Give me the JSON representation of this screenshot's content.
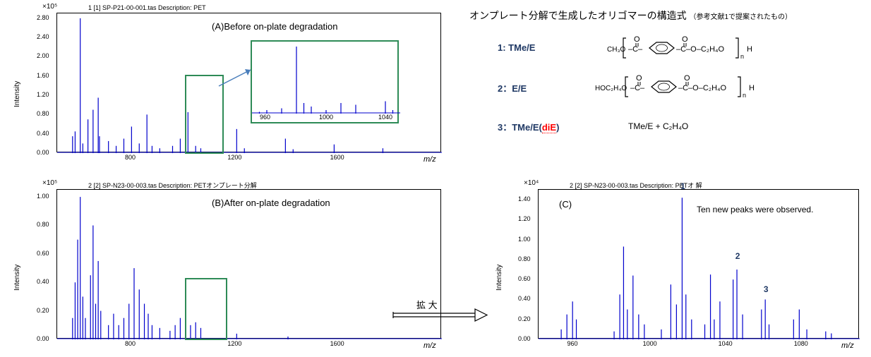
{
  "colors": {
    "spectrum": "#0000cd",
    "green_box": "#2e8b57",
    "arrow": "#4a7ebb",
    "struct_label": "#1f3864",
    "dotted_red": "#ff0000",
    "bg": "#ffffff"
  },
  "chartA": {
    "file_label": "1 [1] SP-P21-00-001.tas    Description: PET",
    "overlay": "(A)Before on-plate degradation",
    "y_exponent": "×10⁵",
    "y_axis": "Intensity",
    "x_axis": "m/z",
    "y_ticks": [
      "0.00",
      "0.40",
      "0.80",
      "1.20",
      "1.60",
      "2.00",
      "2.40",
      "2.80"
    ],
    "x_ticks": [
      "800",
      "1200",
      "1600"
    ],
    "xlim": [
      500,
      2000
    ],
    "ylim": [
      0,
      2.9
    ],
    "inset_xticks": [
      "960",
      "1000",
      "1040"
    ],
    "peaks": [
      [
        560,
        0.35
      ],
      [
        570,
        0.45
      ],
      [
        590,
        2.8
      ],
      [
        600,
        0.2
      ],
      [
        620,
        0.7
      ],
      [
        640,
        0.9
      ],
      [
        660,
        1.15
      ],
      [
        665,
        0.35
      ],
      [
        700,
        0.25
      ],
      [
        730,
        0.15
      ],
      [
        760,
        0.3
      ],
      [
        790,
        0.55
      ],
      [
        820,
        0.2
      ],
      [
        850,
        0.8
      ],
      [
        870,
        0.15
      ],
      [
        900,
        0.1
      ],
      [
        950,
        0.15
      ],
      [
        980,
        0.3
      ],
      [
        1010,
        0.85
      ],
      [
        1040,
        0.15
      ],
      [
        1060,
        0.1
      ],
      [
        1200,
        0.5
      ],
      [
        1230,
        0.1
      ],
      [
        1390,
        0.3
      ],
      [
        1420,
        0.08
      ],
      [
        1580,
        0.18
      ],
      [
        1770,
        0.1
      ]
    ],
    "inset_peaks": [
      [
        955,
        0.05
      ],
      [
        960,
        0.1
      ],
      [
        970,
        0.15
      ],
      [
        980,
        1.9
      ],
      [
        985,
        0.3
      ],
      [
        990,
        0.2
      ],
      [
        1000,
        0.1
      ],
      [
        1010,
        0.3
      ],
      [
        1020,
        0.25
      ],
      [
        1040,
        0.35
      ],
      [
        1045,
        0.1
      ]
    ],
    "inset_ylim": [
      0,
      2.0
    ],
    "inset_xlim": [
      950,
      1050
    ]
  },
  "chartB": {
    "file_label": "2 [2] SP-N23-00-003.tas    Description: PETオンプレート分解",
    "overlay": "(B)After on-plate degradation",
    "y_exponent": "×10⁵",
    "y_axis": "Intensity",
    "x_axis": "m/z",
    "y_ticks": [
      "0.00",
      "0.20",
      "0.40",
      "0.60",
      "0.80",
      "1.00"
    ],
    "x_ticks": [
      "800",
      "1200",
      "1600"
    ],
    "xlim": [
      500,
      2000
    ],
    "ylim": [
      0,
      1.05
    ],
    "expand_label": "拡 大",
    "peaks": [
      [
        560,
        0.15
      ],
      [
        570,
        0.4
      ],
      [
        580,
        0.7
      ],
      [
        590,
        1.0
      ],
      [
        600,
        0.3
      ],
      [
        610,
        0.15
      ],
      [
        630,
        0.45
      ],
      [
        640,
        0.8
      ],
      [
        650,
        0.25
      ],
      [
        660,
        0.55
      ],
      [
        670,
        0.2
      ],
      [
        700,
        0.1
      ],
      [
        720,
        0.18
      ],
      [
        740,
        0.1
      ],
      [
        760,
        0.15
      ],
      [
        780,
        0.25
      ],
      [
        800,
        0.5
      ],
      [
        820,
        0.35
      ],
      [
        840,
        0.25
      ],
      [
        855,
        0.18
      ],
      [
        870,
        0.1
      ],
      [
        900,
        0.08
      ],
      [
        940,
        0.06
      ],
      [
        960,
        0.1
      ],
      [
        980,
        0.15
      ],
      [
        1000,
        0.08
      ],
      [
        1020,
        0.1
      ],
      [
        1040,
        0.12
      ],
      [
        1060,
        0.08
      ],
      [
        1200,
        0.04
      ],
      [
        1400,
        0.02
      ]
    ]
  },
  "chartC": {
    "file_label": "2 [2] SP-N23-00-003.tas    Description: PETオ          解",
    "overlay": "(C)",
    "note": "Ten new peaks were observed.",
    "y_exponent": "×10⁴",
    "y_axis": "Intensity",
    "x_axis": "m/z",
    "y_ticks": [
      "0.00",
      "0.20",
      "0.40",
      "0.60",
      "0.80",
      "1.00",
      "1.20",
      "1.40"
    ],
    "x_ticks": [
      "960",
      "1000",
      "1040",
      "1080"
    ],
    "xlim": [
      940,
      1110
    ],
    "ylim": [
      0,
      1.5
    ],
    "peak_labels": {
      "1": [
        1017,
        1.45
      ],
      "2": [
        1046,
        0.75
      ],
      "3": [
        1061,
        0.42
      ]
    },
    "peaks": [
      [
        952,
        0.1
      ],
      [
        955,
        0.25
      ],
      [
        958,
        0.38
      ],
      [
        960,
        0.2
      ],
      [
        980,
        0.08
      ],
      [
        983,
        0.45
      ],
      [
        985,
        0.93
      ],
      [
        987,
        0.3
      ],
      [
        990,
        0.64
      ],
      [
        993,
        0.25
      ],
      [
        996,
        0.15
      ],
      [
        1005,
        0.1
      ],
      [
        1010,
        0.55
      ],
      [
        1013,
        0.35
      ],
      [
        1016,
        1.42
      ],
      [
        1018,
        0.45
      ],
      [
        1021,
        0.2
      ],
      [
        1028,
        0.15
      ],
      [
        1031,
        0.65
      ],
      [
        1033,
        0.2
      ],
      [
        1036,
        0.38
      ],
      [
        1043,
        0.6
      ],
      [
        1045,
        0.7
      ],
      [
        1048,
        0.25
      ],
      [
        1058,
        0.3
      ],
      [
        1060,
        0.4
      ],
      [
        1062,
        0.15
      ],
      [
        1075,
        0.2
      ],
      [
        1078,
        0.3
      ],
      [
        1082,
        0.1
      ],
      [
        1092,
        0.08
      ],
      [
        1095,
        0.06
      ]
    ]
  },
  "structures": {
    "heading": "オンプレート分解で生成したオリゴマーの構造式",
    "heading_small": "（参考文献1で提案されたもの）",
    "items": [
      {
        "label": "1: TMe/E",
        "left": "CH₃O–",
        "repeat_left": "C–",
        "repeat_right": "–C–O–C₂H₄O",
        "right": "H",
        "n": "n"
      },
      {
        "label": "2：E/E",
        "left": "HOC₂H₄O–",
        "repeat_left": "C–",
        "repeat_right": "–C–O–C₂H₄O",
        "right": "H",
        "n": "n"
      }
    ],
    "item3_label": "3：TMe/E(diE)",
    "item3_diE": "diE",
    "item3_text": "TMe/E + C₂H₄O"
  }
}
